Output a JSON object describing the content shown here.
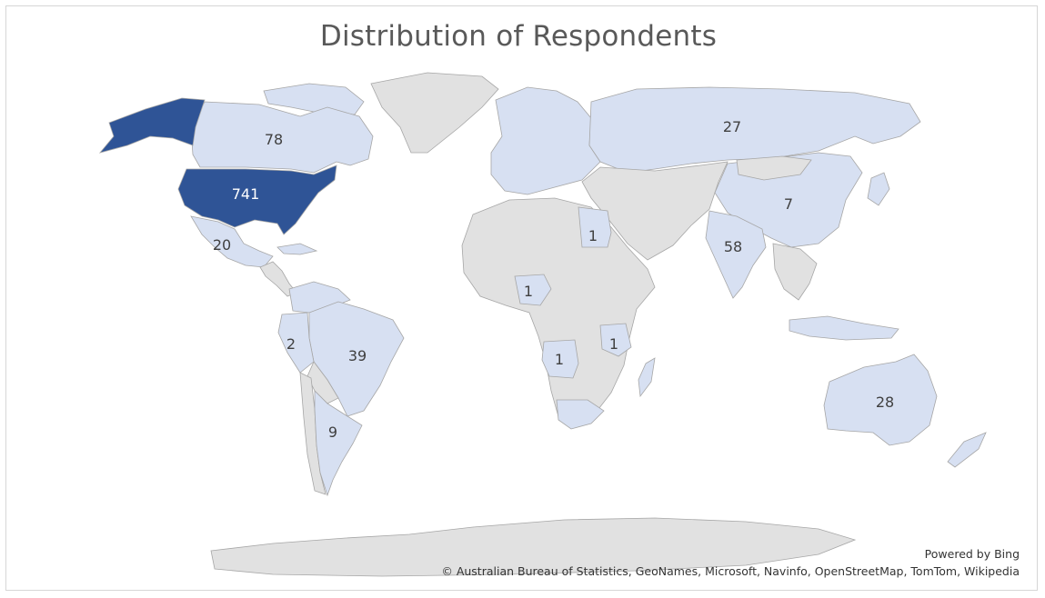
{
  "title": "Distribution of Respondents",
  "credits": {
    "powered_by": "Powered by Bing",
    "attribution": "© Australian Bureau of Statistics, GeoNames, Microsoft, Navinfo, OpenStreetMap, TomTom, Wikipedia"
  },
  "colors": {
    "no_data": "#e1e1e1",
    "low": "#d7e0f2",
    "mid": "#c9d3ea",
    "high": "#2f5496",
    "border": "#a6a6a6"
  },
  "regions": [
    {
      "name": "United States",
      "value": 741,
      "label": "741"
    },
    {
      "name": "Canada",
      "value": 78,
      "label": "78"
    },
    {
      "name": "India",
      "value": 58,
      "label": "58"
    },
    {
      "name": "Brazil",
      "value": 39,
      "label": "39"
    },
    {
      "name": "Australia",
      "value": 28,
      "label": "28"
    },
    {
      "name": "Russia",
      "value": 27,
      "label": "27"
    },
    {
      "name": "Mexico",
      "value": 20,
      "label": "20"
    },
    {
      "name": "Argentina",
      "value": 9,
      "label": "9"
    },
    {
      "name": "China",
      "value": 7,
      "label": "7"
    },
    {
      "name": "Peru",
      "value": 2,
      "label": "2"
    },
    {
      "name": "Egypt",
      "value": 1,
      "label": "1"
    },
    {
      "name": "Nigeria",
      "value": 1,
      "label": "1"
    },
    {
      "name": "Angola",
      "value": 1,
      "label": "1"
    },
    {
      "name": "Tanzania",
      "value": 1,
      "label": "1"
    }
  ]
}
